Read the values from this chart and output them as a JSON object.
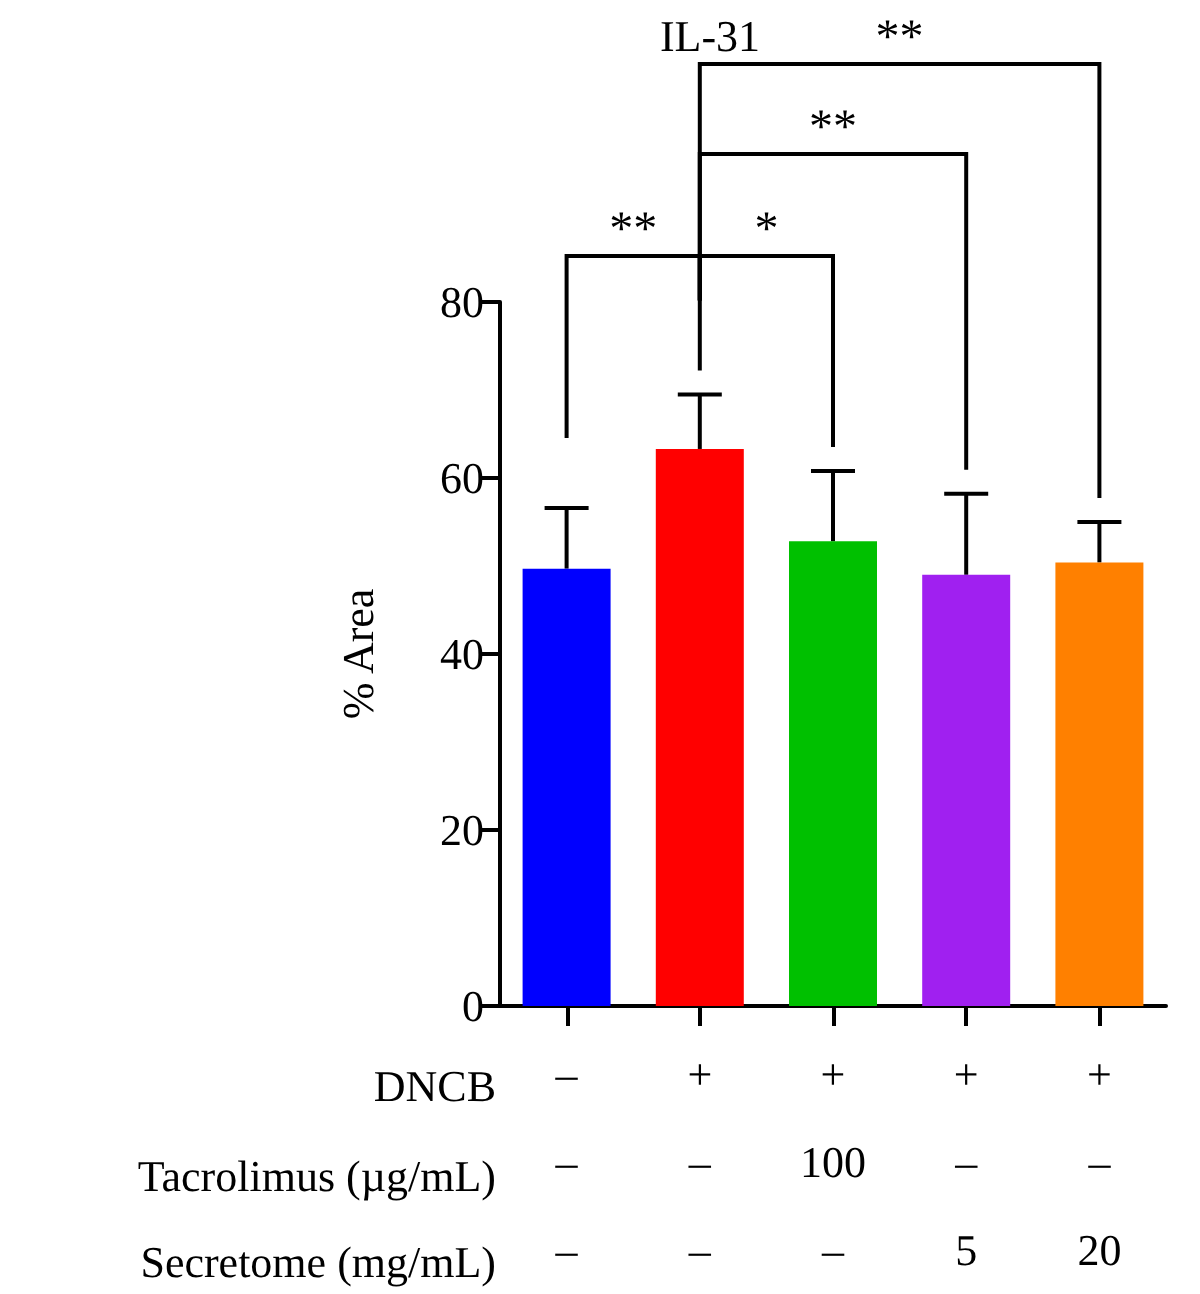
{
  "chart_data": {
    "type": "bar",
    "title": "IL-31",
    "ylabel": "% Area",
    "categories": [
      "–\n–\n–",
      "+\n–\n–",
      "+\n100\n–",
      "+\n–\n5",
      "+\n–\n20"
    ],
    "values": [
      49.7,
      63.3,
      52.8,
      49.0,
      50.4
    ],
    "colors": [
      "#0000ff",
      "#ff0000",
      "#00c000",
      "#a020f0",
      "#ff8000"
    ],
    "errors": [
      [
        49.7,
        56.6
      ],
      [
        63.3,
        69.5
      ],
      [
        52.8,
        60.8
      ],
      [
        49.0,
        58.2
      ],
      [
        50.4,
        55.0
      ]
    ],
    "ylim": [
      0,
      80
    ],
    "yticks": [
      0,
      20,
      40,
      60,
      80
    ],
    "grid": false,
    "annotations": [
      "DNCB",
      "Tacrolimus (µg/mL)",
      "Secretome (mg/mL)",
      "**",
      "*",
      "**",
      "**"
    ]
  }
}
